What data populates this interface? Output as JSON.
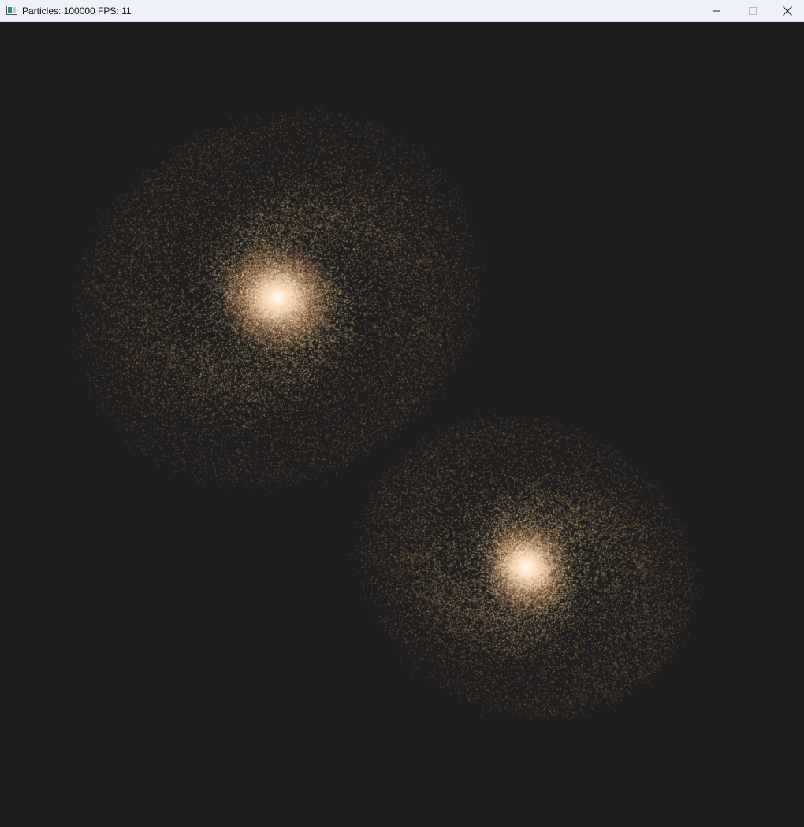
{
  "window": {
    "title": "Particles: 100000 FPS: 11",
    "controls": {
      "minimize_icon": "minimize-icon",
      "maximize_icon": "maximize-icon",
      "close_icon": "close-icon"
    }
  },
  "colors": {
    "titlebar_bg": "#eff1f8",
    "canvas_bg": "#1e1e1e",
    "particle": "#c98a4f",
    "core": "#fff3e6"
  }
}
